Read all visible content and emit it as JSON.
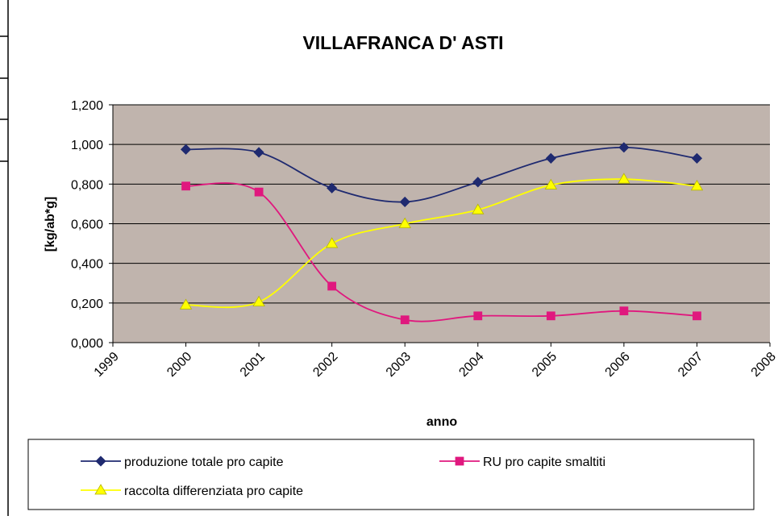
{
  "chart_data": {
    "type": "line",
    "title": "VILLAFRANCA D' ASTI",
    "x_label": "anno",
    "y_label": "[kg/ab*g]",
    "x": [
      2000,
      2001,
      2002,
      2003,
      2004,
      2005,
      2006,
      2007
    ],
    "series": [
      {
        "name": "produzione totale pro capite",
        "color": "#1f2a70",
        "marker": "diamond",
        "values": [
          0.975,
          0.96,
          0.78,
          0.71,
          0.81,
          0.93,
          0.985,
          0.93
        ]
      },
      {
        "name": "RU pro capite smaltiti",
        "color": "#e0187e",
        "marker": "square",
        "values": [
          0.79,
          0.76,
          0.285,
          0.115,
          0.135,
          0.135,
          0.16,
          0.135
        ]
      },
      {
        "name": "raccolta differenziata pro capite",
        "color": "#ffff00",
        "marker": "triangle",
        "values": [
          0.19,
          0.205,
          0.5,
          0.6,
          0.67,
          0.795,
          0.825,
          0.79
        ]
      }
    ],
    "xlim": [
      1999,
      2008
    ],
    "xticks": [
      1999,
      2000,
      2001,
      2002,
      2003,
      2004,
      2005,
      2006,
      2007,
      2008
    ],
    "ylim": [
      0,
      1.2
    ],
    "yticks": [
      {
        "value": 0,
        "label": "0,000"
      },
      {
        "value": 0.2,
        "label": "0,200"
      },
      {
        "value": 0.4,
        "label": "0,400"
      },
      {
        "value": 0.6,
        "label": "0,600"
      },
      {
        "value": 0.8,
        "label": "0,800"
      },
      {
        "value": 1.0,
        "label": "1,000"
      },
      {
        "value": 1.2,
        "label": "1,200"
      }
    ],
    "grid": true,
    "smooth": true,
    "plot_background": "#c0b4ad",
    "legend": "bottom"
  }
}
